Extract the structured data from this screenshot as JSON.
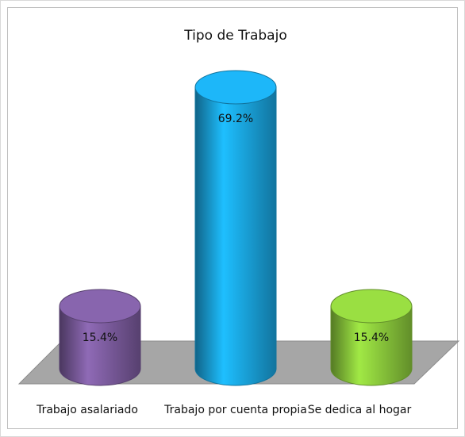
{
  "chart_data": {
    "type": "bar3d",
    "title": "Tipo de Trabajo",
    "categories": [
      "Trabajo asalariado",
      "Trabajo por cuenta propia",
      "Se dedica al hogar"
    ],
    "values": [
      15.4,
      69.2,
      15.4
    ],
    "value_labels": [
      "15.4%",
      "69.2%",
      "15.4%"
    ],
    "colors": [
      "#7c5c9e",
      "#1aa6e2",
      "#8ccb3c"
    ]
  }
}
